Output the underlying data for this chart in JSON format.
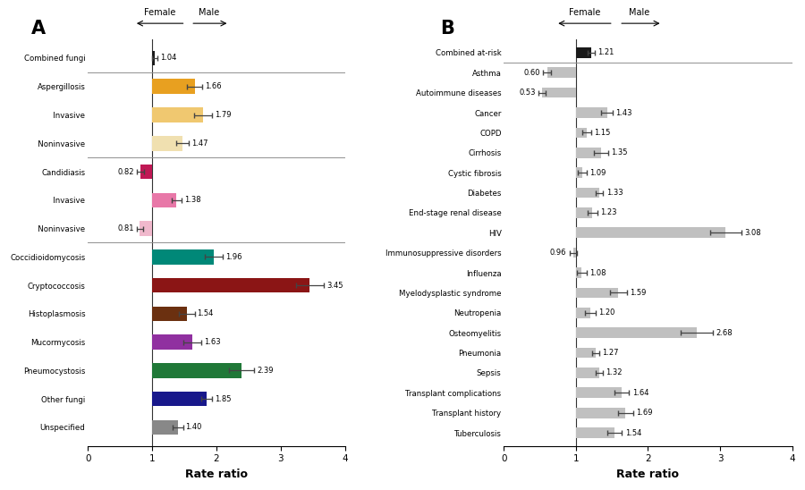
{
  "panel_A": {
    "categories": [
      "Combined fungi",
      "Aspergillosis",
      "Invasive",
      "Noninvasive",
      "Candidiasis",
      "Invasive",
      "Noninvasive",
      "Coccidioidomycosis",
      "Cryptococcosis",
      "Histoplasmosis",
      "Mucormycosis",
      "Pneumocystosis",
      "Other fungi",
      "Unspecified"
    ],
    "values": [
      1.04,
      1.66,
      1.79,
      1.47,
      0.82,
      1.38,
      0.81,
      1.96,
      3.45,
      1.54,
      1.63,
      2.39,
      1.85,
      1.4
    ],
    "errors": [
      0.04,
      0.12,
      0.14,
      0.1,
      0.06,
      0.08,
      0.05,
      0.14,
      0.22,
      0.12,
      0.14,
      0.2,
      0.08,
      0.08
    ],
    "colors": [
      "#1a1a1a",
      "#E8A020",
      "#F0C870",
      "#F0E0B0",
      "#C01855",
      "#E878A8",
      "#F0B8CC",
      "#008878",
      "#8B1515",
      "#6B3010",
      "#9030A0",
      "#207838",
      "#18188B",
      "#888888"
    ],
    "hlines_after": [
      0,
      3,
      6
    ],
    "indented": [
      2,
      3,
      5,
      6
    ],
    "title": "A",
    "xlabel": "Rate ratio",
    "xlim": [
      0,
      4
    ],
    "xticks": [
      0,
      1,
      2,
      3,
      4
    ]
  },
  "panel_B": {
    "categories": [
      "Combined at-risk",
      "Asthma",
      "Autoimmune diseases",
      "Cancer",
      "COPD",
      "Cirrhosis",
      "Cystic fibrosis",
      "Diabetes",
      "End-stage renal disease",
      "HIV",
      "Immunosuppressive disorders",
      "Influenza",
      "Myelodysplastic syndrome",
      "Neutropenia",
      "Osteomyelitis",
      "Pneumonia",
      "Sepsis",
      "Transplant complications",
      "Transplant history",
      "Tuberculosis"
    ],
    "values": [
      1.21,
      0.6,
      0.53,
      1.43,
      1.15,
      1.35,
      1.09,
      1.33,
      1.23,
      3.08,
      0.96,
      1.08,
      1.59,
      1.2,
      2.68,
      1.27,
      1.32,
      1.64,
      1.69,
      1.54
    ],
    "errors": [
      0.05,
      0.06,
      0.05,
      0.08,
      0.06,
      0.1,
      0.06,
      0.05,
      0.07,
      0.22,
      0.05,
      0.07,
      0.12,
      0.07,
      0.22,
      0.05,
      0.05,
      0.1,
      0.1,
      0.1
    ],
    "colors": [
      "#1a1a1a",
      "#C0C0C0",
      "#C0C0C0",
      "#C0C0C0",
      "#C0C0C0",
      "#C0C0C0",
      "#C0C0C0",
      "#C0C0C0",
      "#C0C0C0",
      "#C0C0C0",
      "#C0C0C0",
      "#C0C0C0",
      "#C0C0C0",
      "#C0C0C0",
      "#C0C0C0",
      "#C0C0C0",
      "#C0C0C0",
      "#C0C0C0",
      "#C0C0C0",
      "#C0C0C0"
    ],
    "hlines_after": [
      0
    ],
    "title": "B",
    "xlabel": "Rate ratio",
    "xlim": [
      0,
      4
    ],
    "xticks": [
      0,
      1,
      2,
      3,
      4
    ]
  },
  "bg_color": "#ffffff"
}
